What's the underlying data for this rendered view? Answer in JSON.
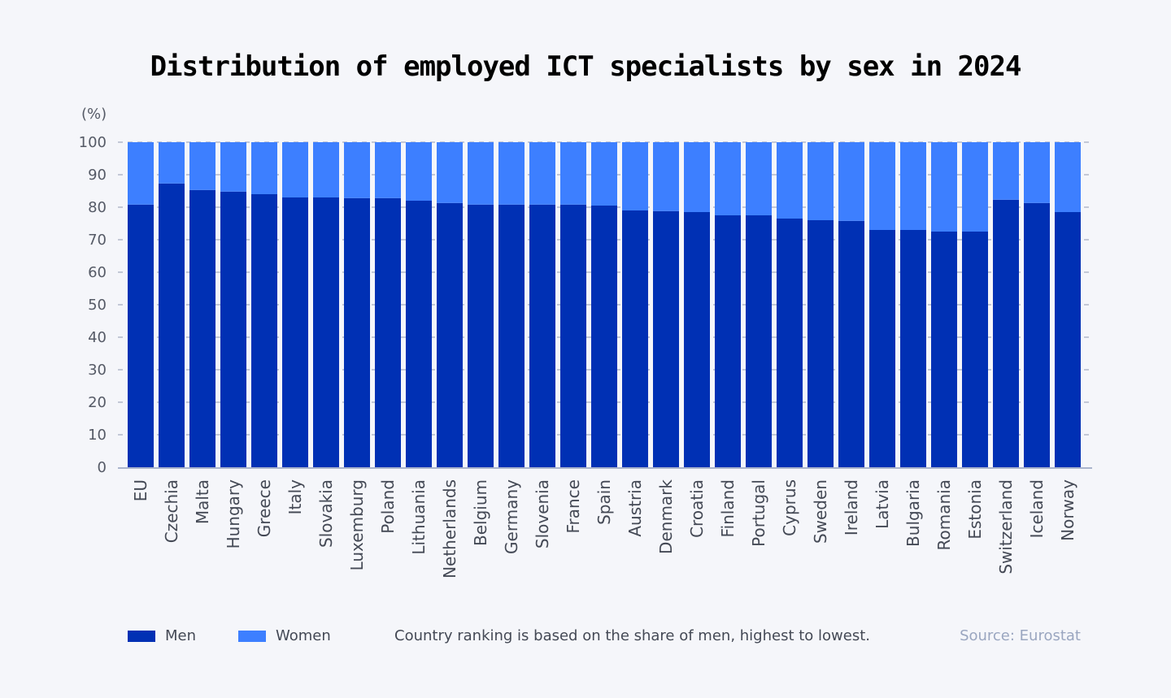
{
  "chart_data": {
    "type": "bar",
    "stacked": true,
    "title": "Distribution of employed ICT specialists by sex in 2024",
    "ylabel": "(%)",
    "xlabel": "",
    "ylim": [
      0,
      100
    ],
    "yticks": [
      0,
      10,
      20,
      30,
      40,
      50,
      60,
      70,
      80,
      90,
      100
    ],
    "grid": true,
    "legend_placement": "bottom-left",
    "categories": [
      "EU",
      "Czechia",
      "Malta",
      "Hungary",
      "Greece",
      "Italy",
      "Slovakia",
      "Luxemburg",
      "Poland",
      "Lithuania",
      "Netherlands",
      "Belgium",
      "Germany",
      "Slovenia",
      "France",
      "Spain",
      "Austria",
      "Denmark",
      "Croatia",
      "Finland",
      "Portugal",
      "Cyprus",
      "Sweden",
      "Ireland",
      "Latvia",
      "Bulgaria",
      "Romania",
      "Estonia",
      "Switzerland",
      "Iceland",
      "Norway"
    ],
    "series": [
      {
        "name": "Men",
        "color": "#0030b4",
        "values": [
          80.8,
          87.3,
          85.3,
          84.8,
          84.0,
          83.0,
          83.0,
          82.8,
          82.8,
          82.0,
          81.3,
          80.8,
          80.8,
          80.8,
          80.8,
          80.5,
          79.0,
          78.8,
          78.5,
          77.5,
          77.5,
          76.5,
          76.0,
          75.8,
          73.0,
          73.0,
          72.5,
          72.5,
          82.3,
          81.3,
          78.5
        ]
      },
      {
        "name": "Women",
        "color": "#3d7fff",
        "values": [
          19.2,
          12.7,
          14.7,
          15.2,
          16.0,
          17.0,
          17.0,
          17.2,
          17.2,
          18.0,
          18.7,
          19.2,
          19.2,
          19.2,
          19.2,
          19.5,
          21.0,
          21.2,
          21.5,
          22.5,
          22.5,
          23.5,
          24.0,
          24.2,
          27.0,
          27.0,
          27.5,
          27.5,
          17.7,
          18.7,
          21.5
        ]
      }
    ],
    "note": "Country ranking is based on the share of men, highest to lowest.",
    "source": "Source: Eurostat"
  }
}
